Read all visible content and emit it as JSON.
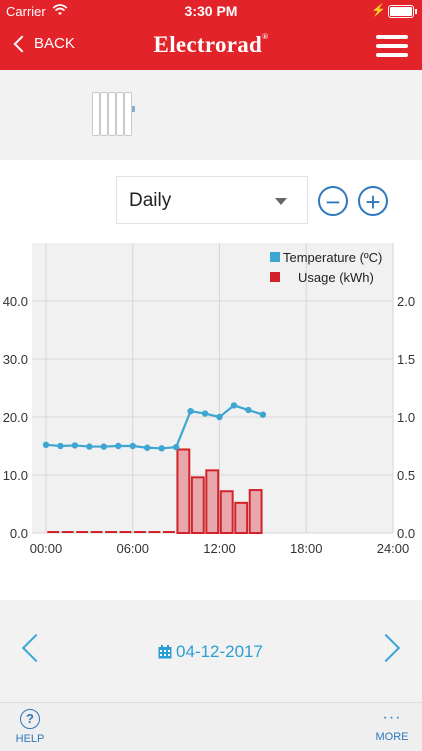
{
  "status": {
    "carrier": "Carrier",
    "time": "3:30 PM"
  },
  "nav": {
    "back_label": "BACK",
    "brand": "Electrorad",
    "brand_mark": "®"
  },
  "controls": {
    "period": "Daily",
    "zoom_out": "−",
    "zoom_in": "+"
  },
  "date_nav": {
    "date": "04-12-2017"
  },
  "tabbar": {
    "help_label": "HELP",
    "help_icon": "?",
    "more_label": "MORE",
    "more_icon": "···"
  },
  "colors": {
    "brand_red": "#e2232a",
    "temperature": "#3ea6d1",
    "usage": "#d2232a",
    "link_blue": "#2f78bd"
  },
  "chart_data": {
    "type": "bar+line",
    "x_ticks": [
      "00:00",
      "06:00",
      "12:00",
      "18:00",
      "24:00"
    ],
    "y_left_ticks": [
      "0.0",
      "10.0",
      "20.0",
      "30.0",
      "40.0"
    ],
    "y_right_ticks": [
      "0.0",
      "0.5",
      "1.0",
      "1.5",
      "2.0"
    ],
    "y_left_range": [
      0,
      50
    ],
    "y_right_range": [
      0,
      2.5
    ],
    "x_range": [
      0,
      24
    ],
    "legend_placement": "top-right",
    "grid": true,
    "series": [
      {
        "name": "Temperature (ºC)",
        "axis": "left",
        "kind": "line",
        "x": [
          0,
          1,
          2,
          3,
          4,
          5,
          6,
          7,
          8,
          9,
          10,
          11,
          12,
          13,
          14,
          15
        ],
        "values": [
          15.2,
          15.0,
          15.1,
          14.9,
          14.9,
          15.0,
          15.0,
          14.7,
          14.6,
          14.8,
          21.0,
          20.6,
          20.0,
          22.0,
          21.2,
          20.4
        ]
      },
      {
        "name": "Usage (kWh)",
        "axis": "right",
        "kind": "bar",
        "x": [
          0,
          1,
          2,
          3,
          4,
          5,
          6,
          7,
          8,
          9,
          10,
          11,
          12,
          13,
          14
        ],
        "values": [
          0,
          0,
          0,
          0,
          0,
          0,
          0,
          0,
          0,
          0.72,
          0.48,
          0.54,
          0.36,
          0.26,
          0.37
        ]
      }
    ]
  }
}
